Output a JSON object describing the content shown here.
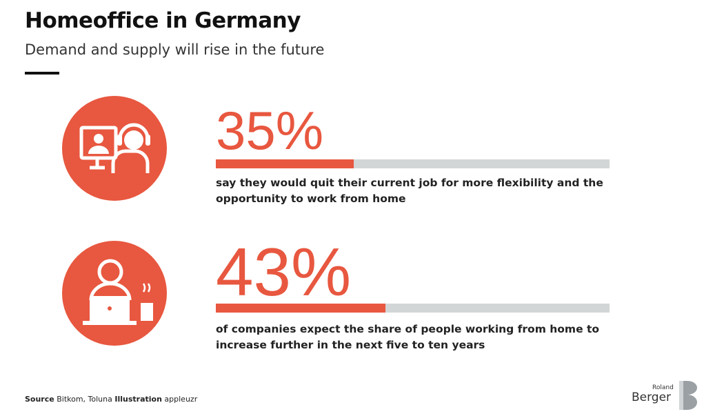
{
  "chart_data": {
    "type": "progress",
    "title": "Homeoffice in Germany",
    "subtitle": "Demand and supply will rise in the future",
    "values": [
      35,
      43
    ],
    "value_labels": [
      "35%",
      "43%"
    ],
    "descriptions": [
      "say they would quit their current job for more flexibility and the opportunity to work from home",
      "of companies expect the share of people working from home to increase further in the next five to ten years"
    ],
    "xlim": [
      0,
      100
    ],
    "color": "#e8573f",
    "track_color": "#d3d6d6"
  },
  "footer": {
    "source_label": "Source",
    "source": "Bitkom, Toluna",
    "illustration_label": "Illustration",
    "illustration": "appleuzr"
  },
  "logo": {
    "line1": "Roland",
    "line2": "Berger"
  }
}
